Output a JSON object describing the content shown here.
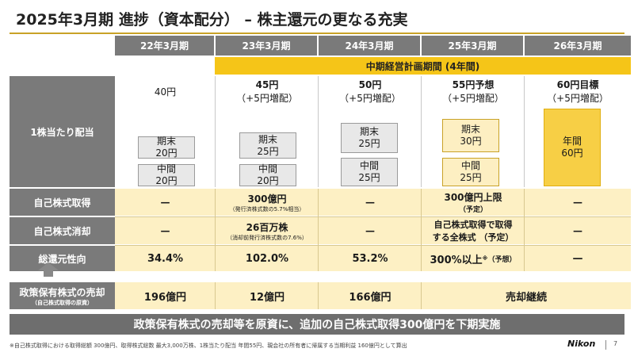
{
  "title": "2025年3月期 進捗（資本配分） – 株主還元の更なる充実",
  "columns": [
    "22年3月期",
    "23年3月期",
    "24年3月期",
    "25年3月期",
    "26年3月期"
  ],
  "plan_period_label": "中期経営計画期間 (4年間)",
  "dividend": {
    "row_label": "1株当たり配当",
    "totals": [
      {
        "line1": "40円",
        "line2": ""
      },
      {
        "line1": "45円",
        "line2": "（+5円増配）"
      },
      {
        "line1": "50円",
        "line2": "（+5円増配）"
      },
      {
        "line1": "55円予想",
        "line2": "（+5円増配）"
      },
      {
        "line1": "60円目標",
        "line2": "（+5円増配）"
      }
    ],
    "term_end": [
      {
        "label": "期末",
        "value": "20円"
      },
      {
        "label": "期末",
        "value": "25円"
      },
      {
        "label": "期末",
        "value": "25円"
      },
      {
        "label": "期末",
        "value": "30円"
      }
    ],
    "interim": [
      {
        "label": "中間",
        "value": "20円"
      },
      {
        "label": "中間",
        "value": "20円"
      },
      {
        "label": "中間",
        "value": "25円"
      },
      {
        "label": "中間",
        "value": "25円"
      }
    ],
    "annual": {
      "label": "年間",
      "value": "60円"
    }
  },
  "buyback": {
    "row_label": "自己株式取得",
    "c22": "—",
    "c23_main": "300億円",
    "c23_note": "（発行済株式数の5.7%相当）",
    "c24": "—",
    "c25_main": "300億円上限",
    "c25_sub": "（予定）",
    "c26": "—"
  },
  "cancellation": {
    "row_label": "自己株式消却",
    "c22": "—",
    "c23_main": "26百万株",
    "c23_note": "（消却前発行済株式数の7.6%）",
    "c24": "—",
    "c25_line1": "自己株式取得で取得",
    "c25_line2": "する全株式 （予定）",
    "c26": "—"
  },
  "payout": {
    "row_label": "総還元性向",
    "c22": "34.4%",
    "c23": "102.0%",
    "c24": "53.2%",
    "c25_main": "300%以上",
    "c25_mark": "※",
    "c25_sub": "（予想）",
    "c26": "—"
  },
  "sale": {
    "row_label": "政策保有株式の売却",
    "row_sublabel": "（自己株式取得の原資）",
    "c22": "196億円",
    "c23": "12億円",
    "c24": "166億円",
    "c25_26": "売却継続"
  },
  "banner": "政策保有株式の売却等を原資に、追加の自己株式取得300億円を下期実施",
  "footnote": "※自己株式取得における取得総額 300億円、取得株式総数 最大3,000万株、1株当たり配当 年間55円、親会社の所有者に帰属する当期利益 160億円として算出",
  "logo": "Nikon",
  "page_number": "7",
  "colors": {
    "accent": "#f5c518",
    "header_gray": "#7a7a7a",
    "light_yellow": "#fdf0c4",
    "banner_gray": "#6e6e6e"
  }
}
